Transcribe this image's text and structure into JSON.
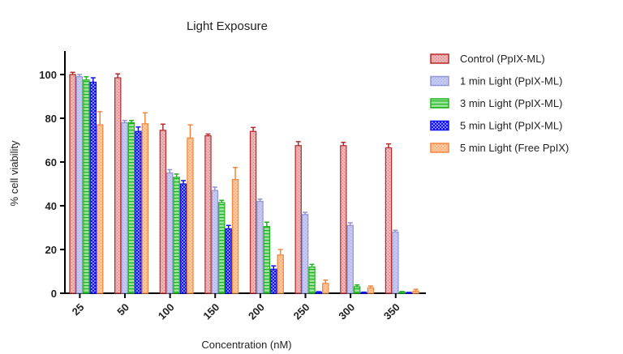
{
  "chart_data": {
    "type": "bar",
    "title": "Light Exposure",
    "xlabel": "Concentration (nM)",
    "ylabel": "% cell viability",
    "ylim": [
      0,
      110
    ],
    "yticks": [
      "0",
      "20",
      "40",
      "60",
      "80",
      "100"
    ],
    "categories": [
      "25",
      "50",
      "100",
      "150",
      "200",
      "250",
      "300",
      "350"
    ],
    "legend_position": "right",
    "series": [
      {
        "name": "Control (PpIX-ML)",
        "color": "#b5292b",
        "fill": "#e8b3b5",
        "pattern": "crosshatch-light",
        "values": [
          100,
          98.5,
          74.5,
          72,
          74,
          67.5,
          67.5,
          66.5
        ],
        "errors": [
          1,
          1.8,
          2.8,
          0.8,
          1.8,
          1.8,
          1.5,
          1.8
        ]
      },
      {
        "name": "1 min Light (PpIX-ML)",
        "color": "#8f95d6",
        "fill": "#c5c9ef",
        "pattern": "fine-checker",
        "values": [
          99,
          78,
          55,
          47,
          42,
          36,
          31,
          28
        ],
        "errors": [
          1,
          1,
          1.5,
          1.5,
          1,
          1,
          1.2,
          0.8
        ]
      },
      {
        "name": "3 min Light (PpIX-ML)",
        "color": "#1fb31f",
        "fill": "#9be39b",
        "pattern": "horizontal-lines",
        "values": [
          97.5,
          78,
          53,
          41.5,
          30.5,
          12,
          3,
          0.5
        ],
        "errors": [
          1.5,
          1,
          1.5,
          1,
          2,
          1.2,
          0.8,
          0.3
        ]
      },
      {
        "name": "5 min Light (PpIX-ML)",
        "color": "#1111ee",
        "fill": "#8a8af5",
        "pattern": "checker",
        "values": [
          96.5,
          74,
          50,
          29.5,
          11,
          0.5,
          0.3,
          0.2
        ],
        "errors": [
          2,
          2,
          1.5,
          1.5,
          1.5,
          0.2,
          0.2,
          0.2
        ]
      },
      {
        "name": "5 min Light (Free PpIX)",
        "color": "#f2853a",
        "fill": "#f8c49c",
        "pattern": "fine-checker",
        "values": [
          77,
          77.5,
          71,
          52,
          17.5,
          4.5,
          2.5,
          1
        ],
        "errors": [
          6,
          5,
          6,
          5.5,
          2.5,
          1.5,
          0.8,
          0.8
        ]
      }
    ]
  }
}
